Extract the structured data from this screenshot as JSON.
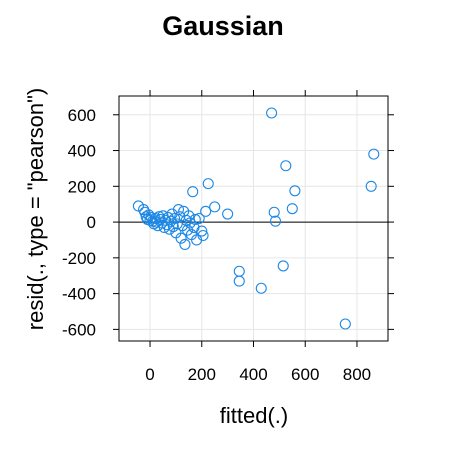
{
  "chart_data": {
    "type": "scatter",
    "title": "Gaussian",
    "xlabel": "fitted(.)",
    "ylabel": "resid(., type = \"pearson\")",
    "xlim": [
      -120,
      920
    ],
    "ylim": [
      -665,
      705
    ],
    "x_ticks": [
      0,
      200,
      400,
      600,
      800
    ],
    "y_ticks": [
      -600,
      -400,
      -200,
      0,
      200,
      400,
      600
    ],
    "reference_line_y": 0,
    "grid": true,
    "colors": {
      "points": "#1E88E5",
      "grid": "#E6E6E6",
      "reference_line": "#000000",
      "frame": "#000000"
    },
    "points": [
      {
        "x": -45,
        "y": 90
      },
      {
        "x": -25,
        "y": 70
      },
      {
        "x": -20,
        "y": 55
      },
      {
        "x": -15,
        "y": 30
      },
      {
        "x": -10,
        "y": 15
      },
      {
        "x": -5,
        "y": 40
      },
      {
        "x": 0,
        "y": 10
      },
      {
        "x": 5,
        "y": 25
      },
      {
        "x": 10,
        "y": 5
      },
      {
        "x": 15,
        "y": -10
      },
      {
        "x": 20,
        "y": 20
      },
      {
        "x": 25,
        "y": 0
      },
      {
        "x": 30,
        "y": -20
      },
      {
        "x": 35,
        "y": 30
      },
      {
        "x": 40,
        "y": 15
      },
      {
        "x": 45,
        "y": -5
      },
      {
        "x": 50,
        "y": 35
      },
      {
        "x": 55,
        "y": -30
      },
      {
        "x": 60,
        "y": 10
      },
      {
        "x": 65,
        "y": -15
      },
      {
        "x": 70,
        "y": 25
      },
      {
        "x": 75,
        "y": -40
      },
      {
        "x": 80,
        "y": 5
      },
      {
        "x": 85,
        "y": 45
      },
      {
        "x": 90,
        "y": -25
      },
      {
        "x": 95,
        "y": 20
      },
      {
        "x": 100,
        "y": -60
      },
      {
        "x": 105,
        "y": -10
      },
      {
        "x": 110,
        "y": 70
      },
      {
        "x": 115,
        "y": 30
      },
      {
        "x": 120,
        "y": -90
      },
      {
        "x": 125,
        "y": -20
      },
      {
        "x": 130,
        "y": 60
      },
      {
        "x": 135,
        "y": -125
      },
      {
        "x": 140,
        "y": 10
      },
      {
        "x": 145,
        "y": -45
      },
      {
        "x": 150,
        "y": 35
      },
      {
        "x": 155,
        "y": -5
      },
      {
        "x": 160,
        "y": -70
      },
      {
        "x": 165,
        "y": 170
      },
      {
        "x": 170,
        "y": -30
      },
      {
        "x": 175,
        "y": 15
      },
      {
        "x": 180,
        "y": -100
      },
      {
        "x": 190,
        "y": 20
      },
      {
        "x": 200,
        "y": -50
      },
      {
        "x": 205,
        "y": -75
      },
      {
        "x": 215,
        "y": 60
      },
      {
        "x": 225,
        "y": 215
      },
      {
        "x": 250,
        "y": 85
      },
      {
        "x": 300,
        "y": 45
      },
      {
        "x": 345,
        "y": -275
      },
      {
        "x": 345,
        "y": -330
      },
      {
        "x": 430,
        "y": -370
      },
      {
        "x": 470,
        "y": 610
      },
      {
        "x": 480,
        "y": 55
      },
      {
        "x": 485,
        "y": 5
      },
      {
        "x": 515,
        "y": -245
      },
      {
        "x": 525,
        "y": 315
      },
      {
        "x": 550,
        "y": 75
      },
      {
        "x": 560,
        "y": 175
      },
      {
        "x": 755,
        "y": -570
      },
      {
        "x": 855,
        "y": 200
      },
      {
        "x": 865,
        "y": 380
      }
    ]
  }
}
